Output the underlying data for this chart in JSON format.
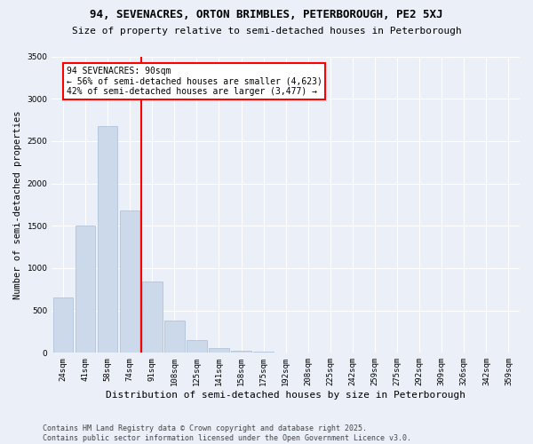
{
  "title": "94, SEVENACRES, ORTON BRIMBLES, PETERBOROUGH, PE2 5XJ",
  "subtitle": "Size of property relative to semi-detached houses in Peterborough",
  "xlabel": "Distribution of semi-detached houses by size in Peterborough",
  "ylabel": "Number of semi-detached properties",
  "categories": [
    "24sqm",
    "41sqm",
    "58sqm",
    "74sqm",
    "91sqm",
    "108sqm",
    "125sqm",
    "141sqm",
    "158sqm",
    "175sqm",
    "192sqm",
    "208sqm",
    "225sqm",
    "242sqm",
    "259sqm",
    "275sqm",
    "292sqm",
    "309sqm",
    "326sqm",
    "342sqm",
    "359sqm"
  ],
  "values": [
    650,
    1500,
    2680,
    1680,
    840,
    380,
    155,
    60,
    20,
    10,
    5,
    5,
    5,
    5,
    5,
    5,
    5,
    5,
    5,
    5,
    5
  ],
  "bar_color": "#ccd9ea",
  "bar_edge_color": "#aabdd4",
  "vline_index": 3,
  "vline_color": "red",
  "annotation_text": "94 SEVENACRES: 90sqm\n← 56% of semi-detached houses are smaller (4,623)\n42% of semi-detached houses are larger (3,477) →",
  "annotation_box_color": "white",
  "annotation_box_edge_color": "red",
  "ylim": [
    0,
    3500
  ],
  "yticks": [
    0,
    500,
    1000,
    1500,
    2000,
    2500,
    3000,
    3500
  ],
  "footer": "Contains HM Land Registry data © Crown copyright and database right 2025.\nContains public sector information licensed under the Open Government Licence v3.0.",
  "background_color": "#eaeff8",
  "grid_color": "white",
  "title_fontsize": 9,
  "subtitle_fontsize": 8,
  "xlabel_fontsize": 8,
  "ylabel_fontsize": 7.5,
  "tick_fontsize": 6.5,
  "annotation_fontsize": 7,
  "footer_fontsize": 6
}
